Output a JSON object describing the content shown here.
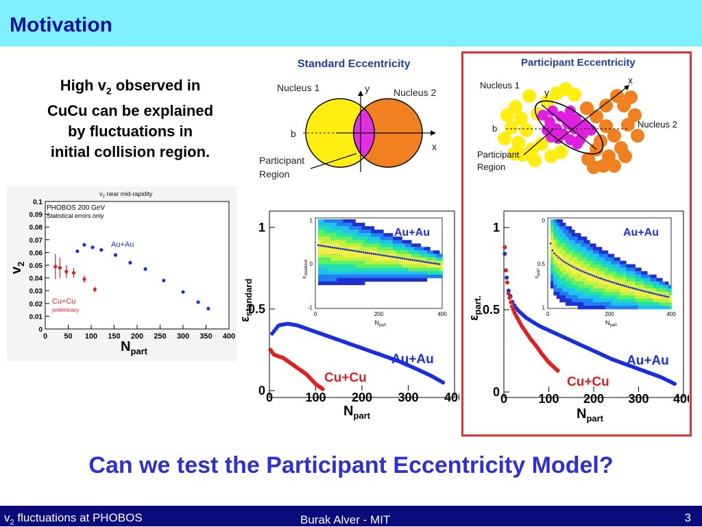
{
  "slide": {
    "title": "Motivation",
    "motivation_lines": [
      "High v",
      "2",
      " observed in",
      "CuCu can be explained",
      "by fluctuations in",
      "initial collision region."
    ],
    "question": "Can we test the Participant Eccentricity Model?",
    "footer_left_pre": "v",
    "footer_left_sub": "2",
    "footer_left_post": " fluctuations at PHOBOS",
    "footer_center": "Burak Alver - MIT",
    "footer_right": "3"
  },
  "std_diagram": {
    "title": "Standard Eccentricity",
    "nucleus1": "Nucleus 1",
    "nucleus2": "Nucleus 2",
    "b": "b",
    "x": "x",
    "y": "y",
    "participant1": "Participant",
    "participant2": "Region",
    "colors": {
      "n1": "#ffee10",
      "n2": "#f08020",
      "overlap": "#e030e0"
    }
  },
  "part_diagram": {
    "title": "Participant Eccentricity",
    "nucleus1": "Nucleus 1",
    "nucleus2": "Nucleus 2",
    "b": "b",
    "x": "x",
    "y": "y",
    "participant1": "Participant",
    "participant2": "Region"
  },
  "v2_plot": {
    "title_pre": "v",
    "title_sub": "2",
    "title_post": " near mid-rapidity",
    "info1": "PHOBOS  200 GeV",
    "info2": "Statistical errors only",
    "auau": "Au+Au",
    "cucu": "Cu+Cu",
    "prelim": "preliminary",
    "ylabel_main": "v",
    "ylabel_sub": "2",
    "xlabel_main": "N",
    "xlabel_sub": "part",
    "yticks": [
      "0",
      "0.01",
      "0.02",
      "0.03",
      "0.04",
      "0.05",
      "0.06",
      "0.07",
      "0.08",
      "0.09",
      "0.1"
    ],
    "xticks": [
      "0",
      "50",
      "100",
      "150",
      "200",
      "250",
      "300",
      "350",
      "400"
    ]
  },
  "eps_std_plot": {
    "ylabel_main": "ε",
    "ylabel_sub": "standard",
    "xlabel_main": "N",
    "xlabel_sub": "part",
    "auau": "Au+Au",
    "cucu": "Cu+Cu",
    "inset_label": "Au+Au",
    "inset_ylabel_main": "ε",
    "inset_ylabel_sub": "standard",
    "yticks": [
      "0",
      "0.5",
      "1"
    ],
    "xticks": [
      "0",
      "100",
      "200",
      "300",
      "400"
    ],
    "inset_yticks": [
      "-1",
      "0",
      "1"
    ],
    "inset_xticks": [
      "0",
      "200",
      "400"
    ]
  },
  "eps_part_plot": {
    "ylabel_main": "ε",
    "ylabel_sub": "part.",
    "xlabel_main": "N",
    "xlabel_sub": "part",
    "auau": "Au+Au",
    "cucu": "Cu+Cu",
    "inset_label": "Au+Au",
    "inset_ylabel_main": "ε",
    "inset_ylabel_sub": "part",
    "yticks": [
      "0",
      "0.5",
      "1"
    ],
    "xticks": [
      "0",
      "100",
      "200",
      "300",
      "400"
    ],
    "inset_yticks": [
      "0",
      "0.5",
      "1"
    ],
    "inset_xticks": [
      "0",
      "200",
      "400"
    ]
  },
  "chart_data": [
    {
      "type": "scatter",
      "title": "v2 near mid-rapidity",
      "xlabel": "Npart",
      "ylabel": "v2",
      "xlim": [
        0,
        400
      ],
      "ylim": [
        0,
        0.1
      ],
      "series": [
        {
          "name": "Au+Au",
          "color": "#1a2ee0",
          "x": [
            70,
            85,
            103,
            122,
            153,
            185,
            218,
            258,
            300,
            333,
            355
          ],
          "y": [
            0.061,
            0.066,
            0.064,
            0.062,
            0.058,
            0.052,
            0.047,
            0.038,
            0.029,
            0.021,
            0.016
          ]
        },
        {
          "name": "Cu+Cu",
          "color": "#e02020",
          "x": [
            22,
            32,
            46,
            62,
            85,
            108
          ],
          "y": [
            0.049,
            0.048,
            0.045,
            0.044,
            0.039,
            0.031
          ],
          "err": [
            0.01,
            0.008,
            0.005,
            0.004,
            0.003,
            0.002
          ]
        }
      ]
    },
    {
      "type": "scatter",
      "xlabel": "Npart",
      "ylabel": "ε standard",
      "xlim": [
        0,
        400
      ],
      "ylim": [
        0,
        1.1
      ],
      "series": [
        {
          "name": "Au+Au",
          "color": "#1a2ee0",
          "x": [
            6,
            20,
            40,
            60,
            80,
            100,
            130,
            160,
            200,
            240,
            280,
            320,
            350,
            375
          ],
          "y": [
            0.35,
            0.4,
            0.41,
            0.4,
            0.38,
            0.36,
            0.33,
            0.3,
            0.26,
            0.22,
            0.18,
            0.13,
            0.09,
            0.05
          ]
        },
        {
          "name": "Cu+Cu",
          "color": "#e02020",
          "x": [
            2,
            10,
            20,
            30,
            40,
            50,
            60,
            70,
            80,
            90,
            100,
            110,
            115
          ],
          "y": [
            0.25,
            0.22,
            0.21,
            0.2,
            0.18,
            0.16,
            0.14,
            0.12,
            0.1,
            0.07,
            0.04,
            0.02,
            0.01
          ]
        }
      ]
    },
    {
      "type": "scatter",
      "xlabel": "Npart",
      "ylabel": "ε part.",
      "xlim": [
        0,
        400
      ],
      "ylim": [
        0,
        1.1
      ],
      "series": [
        {
          "name": "Au+Au",
          "color": "#1a2ee0",
          "x": [
            2,
            5,
            10,
            20,
            30,
            50,
            80,
            120,
            160,
            200,
            240,
            280,
            320,
            350,
            380
          ],
          "y": [
            0.84,
            0.72,
            0.62,
            0.54,
            0.5,
            0.45,
            0.4,
            0.35,
            0.3,
            0.25,
            0.2,
            0.16,
            0.12,
            0.09,
            0.05
          ]
        },
        {
          "name": "Cu+Cu",
          "color": "#e02020",
          "x": [
            2,
            4,
            6,
            8,
            10,
            14,
            18,
            24,
            32,
            40,
            50,
            60,
            72,
            85,
            100,
            112,
            120
          ],
          "y": [
            0.88,
            0.76,
            0.7,
            0.65,
            0.6,
            0.56,
            0.52,
            0.48,
            0.44,
            0.4,
            0.36,
            0.32,
            0.28,
            0.23,
            0.18,
            0.15,
            0.13
          ]
        }
      ]
    }
  ]
}
